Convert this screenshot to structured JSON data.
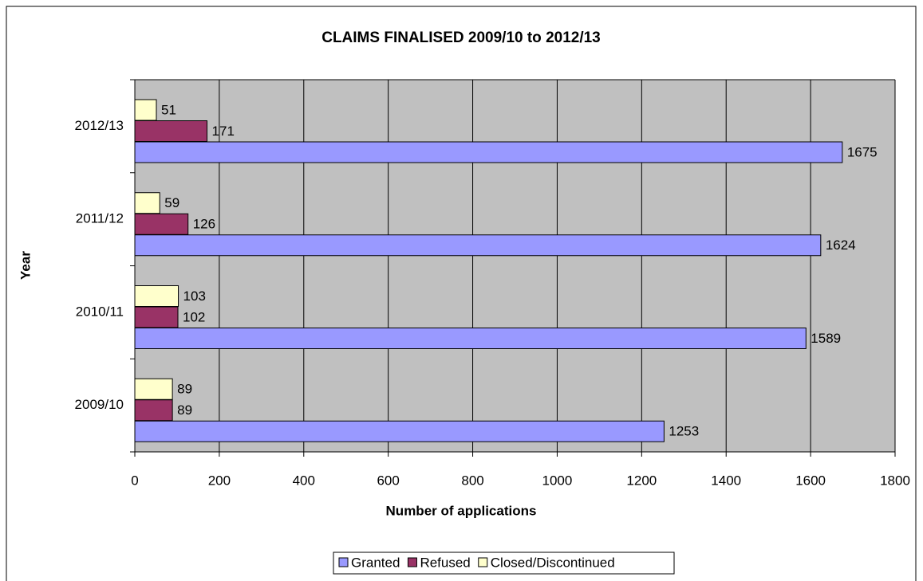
{
  "chart_data": {
    "type": "barh",
    "title": "CLAIMS FINALISED 2009/10 to 2012/13",
    "x_label": "Number of applications",
    "y_label": "Year",
    "categories": [
      "2009/10",
      "2010/11",
      "2011/12",
      "2012/13"
    ],
    "series": [
      {
        "name": "Granted",
        "color": "#9999ff",
        "values": [
          1253,
          1589,
          1624,
          1675
        ]
      },
      {
        "name": "Refused",
        "color": "#993366",
        "values": [
          89,
          102,
          126,
          171
        ]
      },
      {
        "name": "Closed/Discontinued",
        "color": "#ffffcc",
        "values": [
          89,
          103,
          59,
          51
        ]
      }
    ],
    "xlim": [
      0,
      1800
    ],
    "xticks": [
      0,
      200,
      400,
      600,
      800,
      1000,
      1200,
      1400,
      1600,
      1800
    ],
    "grid": true,
    "legend": "bottom"
  }
}
